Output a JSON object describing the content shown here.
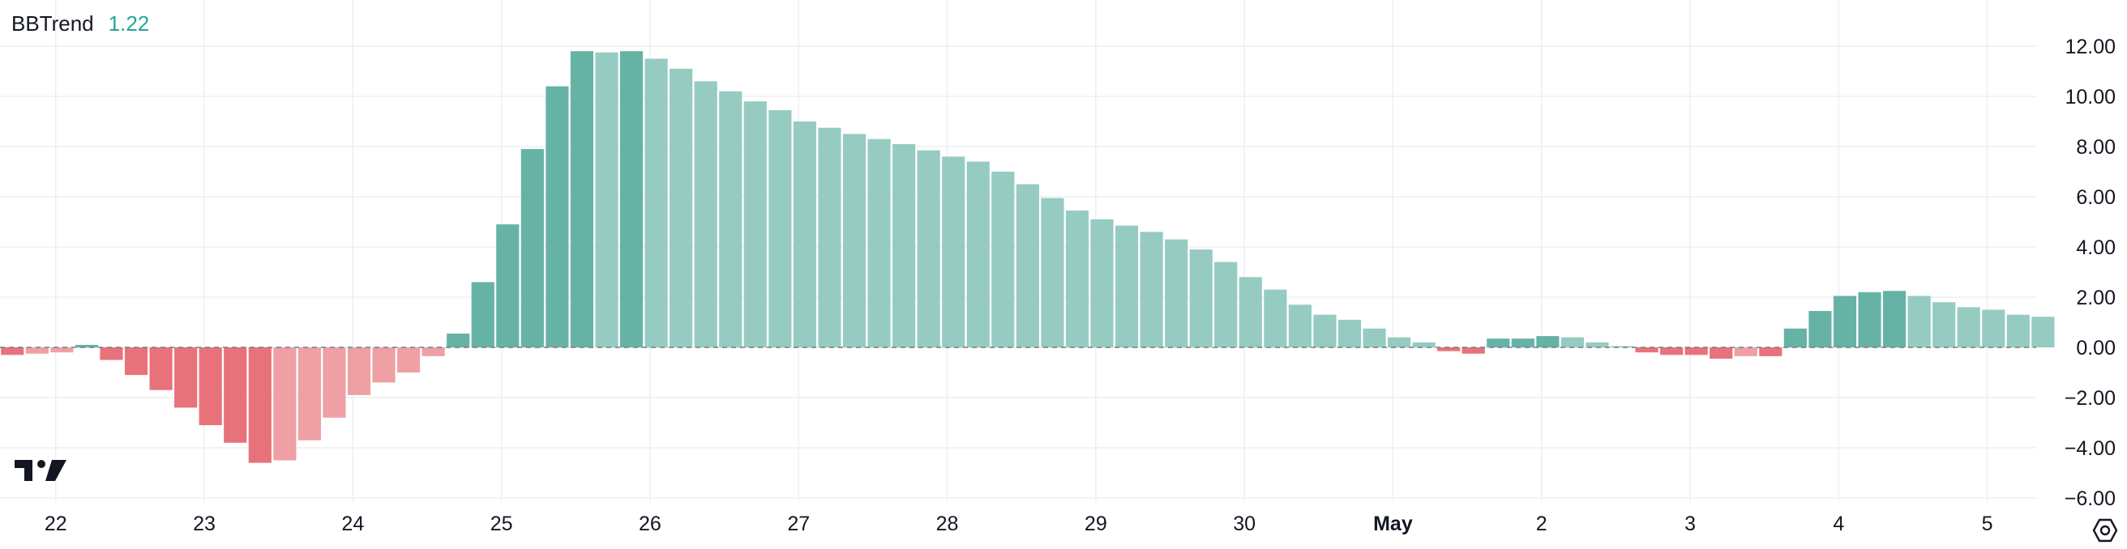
{
  "indicator": {
    "name": "BBTrend",
    "value": "1.22",
    "value_color": "#26a69a"
  },
  "colors": {
    "up_strong": "#66b3a6",
    "up_weak": "#96cbc1",
    "down_strong": "#e8727a",
    "down_weak": "#eea0a4",
    "grid": "#eeeff2",
    "text": "#131722",
    "zero_line": "#787b86"
  },
  "chart_data": {
    "type": "bar",
    "title": "BBTrend",
    "ylim": [
      -6,
      12.5
    ],
    "y_ticks": [
      12,
      10,
      8,
      6,
      4,
      2,
      0,
      -2,
      -4,
      -6
    ],
    "y_tick_labels": [
      "12.00",
      "10.00",
      "8.00",
      "6.00",
      "4.00",
      "2.00",
      "0.00",
      "−2.00",
      "−4.00",
      "−6.00"
    ],
    "x_ticks": [
      {
        "label": "22",
        "bold": false,
        "index": 1.75
      },
      {
        "label": "23",
        "bold": false,
        "index": 7.75
      },
      {
        "label": "24",
        "bold": false,
        "index": 13.75
      },
      {
        "label": "25",
        "bold": false,
        "index": 19.75
      },
      {
        "label": "26",
        "bold": false,
        "index": 25.75
      },
      {
        "label": "27",
        "bold": false,
        "index": 31.75
      },
      {
        "label": "28",
        "bold": false,
        "index": 37.75
      },
      {
        "label": "29",
        "bold": false,
        "index": 43.75
      },
      {
        "label": "30",
        "bold": false,
        "index": 49.75
      },
      {
        "label": "May",
        "bold": true,
        "index": 55.75
      },
      {
        "label": "2",
        "bold": false,
        "index": 61.75
      },
      {
        "label": "3",
        "bold": false,
        "index": 67.75
      },
      {
        "label": "4",
        "bold": false,
        "index": 73.75
      },
      {
        "label": "5",
        "bold": false,
        "index": 79.75
      }
    ],
    "grid": true,
    "values": [
      -0.3,
      -0.25,
      -0.2,
      0.1,
      -0.5,
      -1.1,
      -1.7,
      -2.4,
      -3.1,
      -3.8,
      -4.6,
      -4.5,
      -3.7,
      -2.8,
      -1.9,
      -1.4,
      -1.0,
      -0.35,
      0.55,
      2.6,
      4.9,
      7.9,
      10.4,
      11.8,
      11.75,
      11.8,
      11.5,
      11.1,
      10.6,
      10.2,
      9.8,
      9.45,
      9.0,
      8.75,
      8.5,
      8.3,
      8.1,
      7.85,
      7.6,
      7.4,
      7.0,
      6.5,
      5.95,
      5.45,
      5.1,
      4.85,
      4.6,
      4.3,
      3.9,
      3.4,
      2.8,
      2.3,
      1.7,
      1.3,
      1.1,
      0.75,
      0.4,
      0.2,
      -0.15,
      -0.25,
      0.35,
      0.35,
      0.45,
      0.4,
      0.2,
      0.05,
      -0.2,
      -0.3,
      -0.3,
      -0.45,
      -0.35,
      -0.35,
      0.75,
      1.45,
      2.05,
      2.2,
      2.25,
      2.05,
      1.8,
      1.6,
      1.5,
      1.3,
      1.22
    ]
  }
}
